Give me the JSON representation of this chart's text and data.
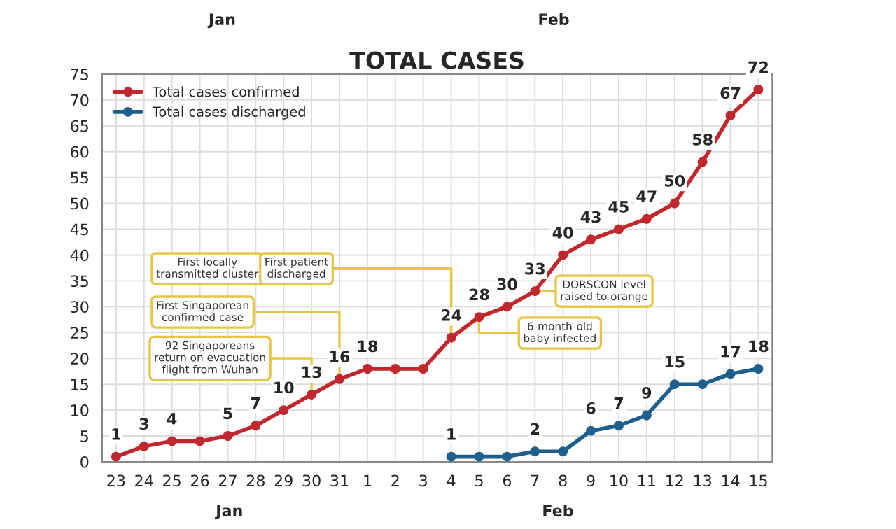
{
  "chart_data": {
    "type": "line",
    "title": "TOTAL CASES",
    "categories": [
      "23",
      "24",
      "25",
      "26",
      "27",
      "28",
      "29",
      "30",
      "31",
      "1",
      "2",
      "3",
      "4",
      "5",
      "6",
      "7",
      "8",
      "9",
      "10",
      "11",
      "12",
      "13",
      "14",
      "15"
    ],
    "series": [
      {
        "name": "Total cases confirmed",
        "color": "#c0282d",
        "values": [
          1,
          3,
          4,
          4,
          5,
          7,
          10,
          13,
          16,
          18,
          18,
          18,
          24,
          28,
          30,
          33,
          40,
          43,
          45,
          47,
          50,
          58,
          67,
          72
        ],
        "value_labels": [
          "1",
          "3",
          "4",
          null,
          "5",
          "7",
          "10",
          "13",
          "16",
          "18",
          null,
          null,
          "24",
          "28",
          "30",
          "33",
          "40",
          "43",
          "45",
          "47",
          "50",
          "58",
          "67",
          "72"
        ]
      },
      {
        "name": "Total cases discharged",
        "color": "#1f5f8b",
        "values": [
          null,
          null,
          null,
          null,
          null,
          null,
          null,
          null,
          null,
          null,
          null,
          null,
          1,
          1,
          1,
          2,
          2,
          6,
          7,
          9,
          15,
          15,
          17,
          18
        ],
        "value_labels": [
          null,
          null,
          null,
          null,
          null,
          null,
          null,
          null,
          null,
          null,
          null,
          null,
          "1",
          null,
          null,
          "2",
          null,
          "6",
          "7",
          "9",
          "15",
          null,
          "17",
          "18"
        ]
      }
    ],
    "ylim": [
      0,
      75
    ],
    "yticks": [
      0,
      5,
      10,
      15,
      20,
      25,
      30,
      35,
      40,
      45,
      50,
      55,
      60,
      65,
      70,
      75
    ],
    "grid": true,
    "legend": "top left",
    "marker": "circle",
    "line_style": "solid",
    "annotations": [
      "Jan",
      "Feb",
      "Jan",
      "Feb",
      {
        "text": "92 Singaporeans\nreturn on evacuation\nflight from Wuhan",
        "x": "30",
        "y": 13
      },
      {
        "text": "First Singaporean\nconfirmed case",
        "x": "31",
        "y": 16
      },
      {
        "text": "First locally\ntransmitted cluster",
        "x": "4",
        "y": 24
      },
      {
        "text": "First patient\ndischarged",
        "x": "4",
        "y": 24
      },
      {
        "text": "DORSCON level\nraised to orange",
        "x": "7",
        "y": 33
      },
      {
        "text": "6-month-old\nbaby infected",
        "x": "5",
        "y": 28
      }
    ]
  }
}
